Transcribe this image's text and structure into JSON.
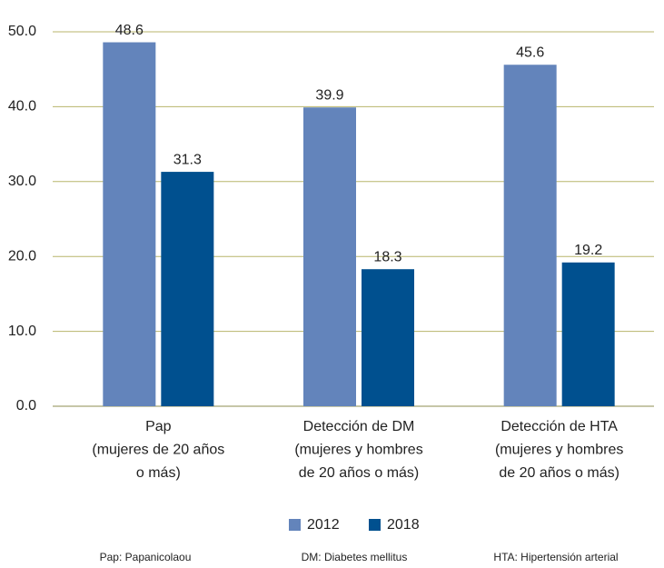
{
  "chart_data": {
    "type": "bar",
    "categories": [
      [
        "Pap",
        "(mujeres de 20 años",
        "o más)"
      ],
      [
        "Detección de DM",
        "(mujeres y hombres",
        "de 20 años o más)"
      ],
      [
        "Detección de HTA",
        "(mujeres y hombres",
        "de 20 años o más)"
      ]
    ],
    "series": [
      {
        "name": "2012",
        "color": "#6384bb",
        "values": [
          48.6,
          39.9,
          45.6
        ]
      },
      {
        "name": "2018",
        "color": "#00508f",
        "values": [
          31.3,
          18.3,
          19.2
        ]
      }
    ],
    "ylim": [
      0,
      50
    ],
    "yticks": [
      {
        "value": 0,
        "label": "0.0"
      },
      {
        "value": 10,
        "label": "10.0"
      },
      {
        "value": 20,
        "label": "20.0"
      },
      {
        "value": 30,
        "label": "30.0"
      },
      {
        "value": 40,
        "label": "40.0"
      },
      {
        "value": 50,
        "label": "50.0"
      }
    ],
    "grid": true,
    "legend": "bottom",
    "notes": [
      "Pap: Papanicolaou",
      "DM: Diabetes mellitus",
      "HTA: Hipertensión arterial"
    ]
  }
}
